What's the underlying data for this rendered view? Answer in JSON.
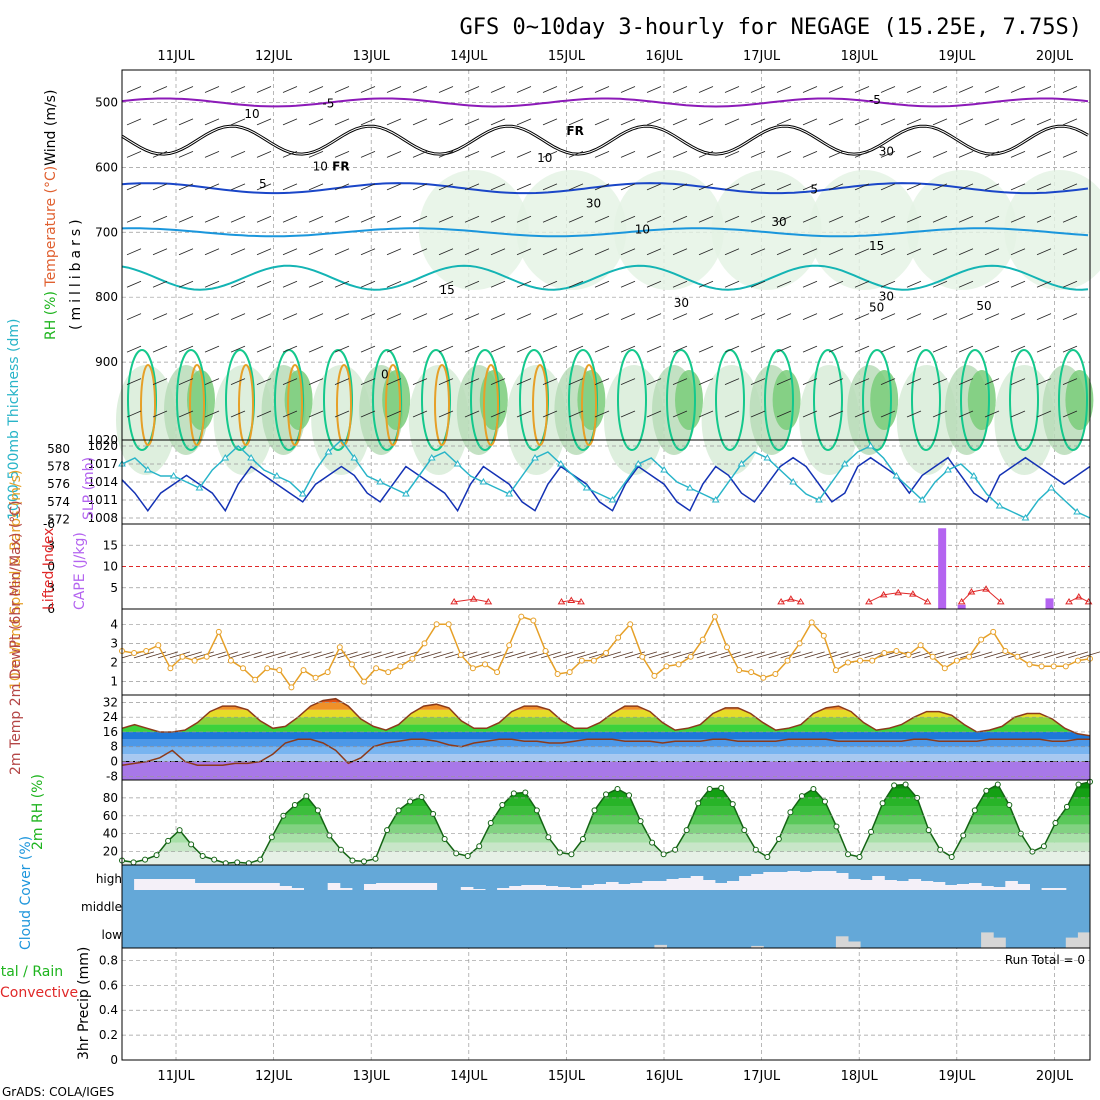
{
  "title": "GFS 0~10day 3-hourly for NEGAGE (15.25E, 7.75S)",
  "footer": "GrADS: COLA/IGES",
  "dates": [
    "11JUL",
    "12JUL",
    "13JUL",
    "14JUL",
    "15JUL",
    "16JUL",
    "17JUL",
    "18JUL",
    "19JUL",
    "20JUL"
  ],
  "colors": {
    "purple": "#8c1ab8",
    "blue": "#1a46c8",
    "lightblue": "#1a96dc",
    "teal": "#14b4b4",
    "green": "#14c88c",
    "orange": "#e6a028",
    "thickness": "#1432b4",
    "slp": "#28b4c8",
    "lifted": "#e02828",
    "cape": "#b464f0",
    "wind": "#e6a028",
    "rh": "#1eb41e",
    "cloud": "#64a8d8",
    "cloudhigh": "#f4f0f8",
    "cloudlow": "#d6d6d6"
  },
  "chart_data": [
    {
      "type": "heatmap",
      "panel": "upper-air",
      "ylabel_parts": [
        "RH (%)",
        "Temperature (°C)",
        "Wind (m/s)"
      ],
      "ylabel_unit": "(millibars)",
      "y_ticks": [
        500,
        600,
        700,
        800,
        900,
        1020
      ],
      "ylim": [
        1020,
        450
      ],
      "contour_labels": [
        {
          "text": "-5",
          "date_index": 1.5,
          "p": 508,
          "color": "purple"
        },
        {
          "text": "-5",
          "date_index": 7.1,
          "p": 502,
          "color": "purple"
        },
        {
          "text": "FR",
          "date_index": 4.0,
          "p": 550,
          "color": "black"
        },
        {
          "text": "FR",
          "date_index": 1.6,
          "p": 605,
          "color": "black"
        },
        {
          "text": "10",
          "date_index": 0.7,
          "p": 524,
          "color": "grey"
        },
        {
          "text": "10",
          "date_index": 1.4,
          "p": 605,
          "color": "grey"
        },
        {
          "text": "10",
          "date_index": 3.7,
          "p": 592,
          "color": "grey"
        },
        {
          "text": "30",
          "date_index": 7.2,
          "p": 582,
          "color": "grey"
        },
        {
          "text": "30",
          "date_index": 6.1,
          "p": 690,
          "color": "grey"
        },
        {
          "text": "30",
          "date_index": 4.2,
          "p": 662,
          "color": "grey"
        },
        {
          "text": "30",
          "date_index": 7.2,
          "p": 805,
          "color": "grey"
        },
        {
          "text": "30",
          "date_index": 5.1,
          "p": 815,
          "color": "grey"
        },
        {
          "text": "50",
          "date_index": 7.1,
          "p": 822,
          "color": "grey"
        },
        {
          "text": "50",
          "date_index": 8.2,
          "p": 820,
          "color": "grey"
        },
        {
          "text": "5",
          "date_index": 0.85,
          "p": 632,
          "color": "blue"
        },
        {
          "text": "5",
          "date_index": 6.5,
          "p": 640,
          "color": "blue"
        },
        {
          "text": "10",
          "date_index": 4.7,
          "p": 702,
          "color": "lightblue"
        },
        {
          "text": "15",
          "date_index": 2.7,
          "p": 795,
          "color": "teal"
        },
        {
          "text": "15",
          "date_index": 7.1,
          "p": 727,
          "color": "teal"
        },
        {
          "text": "0",
          "date_index": 2.1,
          "p": 925,
          "color": "teal"
        }
      ]
    },
    {
      "type": "line",
      "panel": "thickness-slp",
      "ylabel_left": "1000-500mb Thickness (dm)",
      "ylabel_right": "SLP (mb)",
      "thickness_ticks": [
        572,
        574,
        576,
        578,
        580
      ],
      "slp_ticks": [
        1008,
        1011,
        1014,
        1017,
        1020
      ],
      "thickness_ylim": [
        571.5,
        581
      ],
      "slp_ylim": [
        1007,
        1021
      ],
      "series": [
        {
          "values": [
            576.5,
            575,
            573,
            575,
            576,
            577,
            576,
            575,
            573,
            576,
            578,
            577,
            576,
            575,
            574,
            576,
            577,
            578,
            577,
            575,
            574,
            576,
            578,
            577,
            576,
            575,
            573,
            576,
            578,
            577,
            576,
            574,
            573,
            576,
            578,
            577,
            576,
            574,
            573,
            576,
            578,
            577,
            576,
            574,
            573,
            576,
            578,
            577,
            575,
            574,
            576,
            578,
            579,
            578,
            576,
            574,
            575,
            578,
            579,
            578,
            577,
            575,
            577,
            578,
            579,
            577,
            575,
            574,
            577,
            578,
            579,
            578,
            577,
            576,
            577,
            578
          ]
        },
        {
          "values": [
            1017,
            1018,
            1016,
            1015,
            1015,
            1014,
            1013,
            1016,
            1018,
            1020,
            1018,
            1016,
            1015,
            1014,
            1012,
            1016,
            1019,
            1021,
            1018,
            1015,
            1014,
            1013,
            1012,
            1015,
            1018,
            1019,
            1017,
            1015,
            1014,
            1013,
            1012,
            1015,
            1018,
            1019,
            1017,
            1015,
            1013,
            1012,
            1011,
            1014,
            1017,
            1018,
            1016,
            1014,
            1013,
            1012,
            1011,
            1014,
            1017,
            1019,
            1018,
            1016,
            1014,
            1012,
            1011,
            1014,
            1017,
            1019,
            1020,
            1018,
            1015,
            1013,
            1011,
            1014,
            1016,
            1017,
            1015,
            1012,
            1010,
            1009,
            1008,
            1011,
            1013,
            1011,
            1009,
            1008
          ]
        }
      ]
    },
    {
      "type": "bar",
      "panel": "lifted-cape",
      "ylabel_left": "Lifted Index",
      "ylabel_right": "CAPE (J/kg)",
      "li_ticks": [
        6,
        3,
        0,
        -3,
        -6
      ],
      "cape_ticks": [
        5,
        10,
        15
      ],
      "cape_ylim": [
        0,
        20
      ],
      "lifted_points": [
        [
          2.85,
          5.0
        ],
        [
          3.05,
          4.6
        ],
        [
          3.2,
          5.0
        ],
        [
          3.95,
          5.0
        ],
        [
          4.05,
          4.8
        ],
        [
          4.15,
          5.0
        ],
        [
          6.2,
          5.0
        ],
        [
          6.3,
          4.6
        ],
        [
          6.4,
          5.0
        ],
        [
          7.1,
          5.0
        ],
        [
          7.25,
          4.0
        ],
        [
          7.4,
          3.7
        ],
        [
          7.55,
          3.9
        ],
        [
          7.7,
          5.0
        ],
        [
          8.05,
          5.0
        ],
        [
          8.15,
          3.6
        ],
        [
          8.3,
          3.2
        ],
        [
          8.45,
          5.0
        ],
        [
          9.15,
          5.0
        ],
        [
          9.25,
          4.3
        ],
        [
          9.35,
          5.0
        ]
      ],
      "cape_bars": [
        {
          "date_index": 7.85,
          "value": 19
        },
        {
          "date_index": 8.05,
          "value": 1
        },
        {
          "date_index": 8.95,
          "value": 2.5
        }
      ]
    },
    {
      "type": "line",
      "panel": "wind",
      "ylabel": "10m Wind Speed & Barbs (m/s)",
      "y_ticks": [
        1,
        2,
        3,
        4
      ],
      "ylim": [
        0.3,
        4.8
      ],
      "values": [
        2.6,
        2.5,
        2.6,
        2.9,
        1.7,
        2.3,
        2.1,
        2.3,
        3.6,
        2.1,
        1.7,
        1.1,
        1.7,
        1.6,
        0.7,
        1.6,
        1.2,
        1.5,
        2.8,
        1.9,
        1.0,
        1.7,
        1.5,
        1.8,
        2.2,
        3.0,
        4.0,
        4.0,
        2.4,
        1.7,
        1.9,
        1.5,
        2.9,
        4.4,
        4.2,
        2.6,
        1.4,
        1.5,
        2.1,
        2.1,
        2.5,
        3.3,
        4.0,
        2.3,
        1.3,
        1.8,
        1.9,
        2.3,
        3.2,
        4.4,
        2.8,
        1.6,
        1.5,
        1.2,
        1.4,
        2.1,
        3.0,
        4.1,
        3.4,
        1.6,
        2.0,
        2.1,
        2.1,
        2.5,
        2.6,
        2.4,
        2.9,
        2.3,
        1.7,
        2.1,
        2.3,
        3.2,
        3.6,
        2.6,
        2.3,
        1.9,
        1.8,
        1.8,
        1.8,
        2.1,
        2.2
      ]
    },
    {
      "type": "area",
      "panel": "temperature",
      "ylabel": "2m Temp 2m DewPt (6hr Min/Max) (°C)",
      "y_ticks": [
        -8,
        0,
        8,
        16,
        24,
        32
      ],
      "ylim": [
        -10,
        36
      ],
      "temp": [
        18,
        20,
        18,
        16,
        16,
        17,
        21,
        27,
        30,
        30,
        28,
        22,
        18,
        19,
        24,
        30,
        33,
        34,
        30,
        23,
        19,
        17,
        20,
        26,
        30,
        31,
        29,
        22,
        18,
        18,
        21,
        27,
        30,
        30,
        28,
        22,
        18,
        18,
        21,
        26,
        30,
        30,
        27,
        21,
        17,
        18,
        20,
        26,
        29,
        29,
        26,
        21,
        17,
        18,
        20,
        26,
        29,
        30,
        27,
        21,
        17,
        18,
        20,
        24,
        27,
        27,
        25,
        20,
        16,
        17,
        19,
        24,
        26,
        26,
        23,
        18,
        15,
        14
      ],
      "dew": [
        -2,
        -1,
        0,
        2,
        6,
        0,
        -2,
        -2,
        -2,
        -1,
        -1,
        0,
        4,
        10,
        12,
        12,
        10,
        6,
        -1,
        2,
        8,
        10,
        11,
        12,
        12,
        11,
        9,
        8,
        10,
        11,
        12,
        12,
        11,
        11,
        10,
        10,
        11,
        12,
        12,
        12,
        11,
        11,
        11,
        10,
        11,
        11,
        11,
        12,
        12,
        11,
        11,
        11,
        11,
        12,
        12,
        12,
        12,
        11,
        11,
        11,
        11,
        11,
        11,
        12,
        12,
        11,
        11,
        11,
        11,
        12,
        12,
        12,
        12,
        12,
        11,
        11,
        12,
        12
      ]
    },
    {
      "type": "area",
      "panel": "rh",
      "ylabel": "2m RH (%)",
      "y_ticks": [
        20,
        40,
        60,
        80
      ],
      "ylim": [
        5,
        100
      ],
      "values": [
        10,
        8,
        11,
        16,
        32,
        44,
        28,
        15,
        11,
        7,
        8,
        7,
        11,
        36,
        60,
        72,
        82,
        66,
        38,
        22,
        10,
        9,
        12,
        44,
        66,
        76,
        81,
        62,
        34,
        18,
        15,
        26,
        52,
        72,
        85,
        86,
        66,
        36,
        19,
        17,
        34,
        66,
        84,
        90,
        83,
        54,
        30,
        17,
        22,
        44,
        74,
        90,
        91,
        73,
        44,
        22,
        14,
        34,
        64,
        82,
        90,
        76,
        48,
        17,
        14,
        42,
        74,
        94,
        95,
        80,
        44,
        22,
        14,
        38,
        66,
        88,
        95,
        72,
        40,
        20,
        26,
        52,
        70,
        95,
        98
      ]
    },
    {
      "type": "bar",
      "panel": "cloud",
      "ylabel": "Cloud Cover (%)",
      "y_labels": [
        "high",
        "middle",
        "low"
      ],
      "high_frac": [
        0.0,
        0.55,
        0.55,
        0.55,
        0.55,
        0.55,
        0.35,
        0.35,
        0.35,
        0.35,
        0.35,
        0.35,
        0.35,
        0.2,
        0.1,
        0.0,
        0.0,
        0.35,
        0.1,
        0.0,
        0.3,
        0.35,
        0.35,
        0.35,
        0.35,
        0.35,
        0.0,
        0.0,
        0.15,
        0.05,
        0.0,
        0.1,
        0.2,
        0.25,
        0.25,
        0.2,
        0.15,
        0.1,
        0.25,
        0.3,
        0.4,
        0.3,
        0.35,
        0.45,
        0.45,
        0.55,
        0.6,
        0.7,
        0.5,
        0.35,
        0.45,
        0.7,
        0.8,
        0.9,
        0.9,
        0.95,
        0.9,
        0.95,
        0.95,
        0.85,
        0.55,
        0.5,
        0.7,
        0.5,
        0.45,
        0.55,
        0.45,
        0.4,
        0.25,
        0.3,
        0.35,
        0.2,
        0.15,
        0.45,
        0.3,
        0.0,
        0.1,
        0.1,
        0.0,
        0.0
      ],
      "low_frac": [
        0,
        0,
        0,
        0,
        0,
        0,
        0,
        0,
        0,
        0,
        0,
        0,
        0,
        0,
        0,
        0,
        0,
        0,
        0,
        0,
        0,
        0,
        0,
        0,
        0,
        0,
        0,
        0,
        0,
        0,
        0,
        0,
        0,
        0,
        0,
        0,
        0,
        0,
        0,
        0,
        0,
        0,
        0,
        0,
        0.12,
        0,
        0,
        0,
        0,
        0,
        0,
        0,
        0.08,
        0,
        0,
        0,
        0,
        0,
        0,
        0.45,
        0.25,
        0,
        0,
        0,
        0,
        0,
        0,
        0,
        0,
        0,
        0,
        0.6,
        0.4,
        0,
        0,
        0,
        0,
        0,
        0.4,
        0.6
      ]
    },
    {
      "type": "bar",
      "panel": "precip",
      "ylabel": "3hr Precip (mm)",
      "ylabel_extra": [
        "Total / Rain",
        "Convective"
      ],
      "y_ticks": [
        0,
        0.2,
        0.4,
        0.6,
        0.8
      ],
      "ylim": [
        0,
        0.9
      ],
      "run_total": "Run Total = 0",
      "values": []
    }
  ]
}
